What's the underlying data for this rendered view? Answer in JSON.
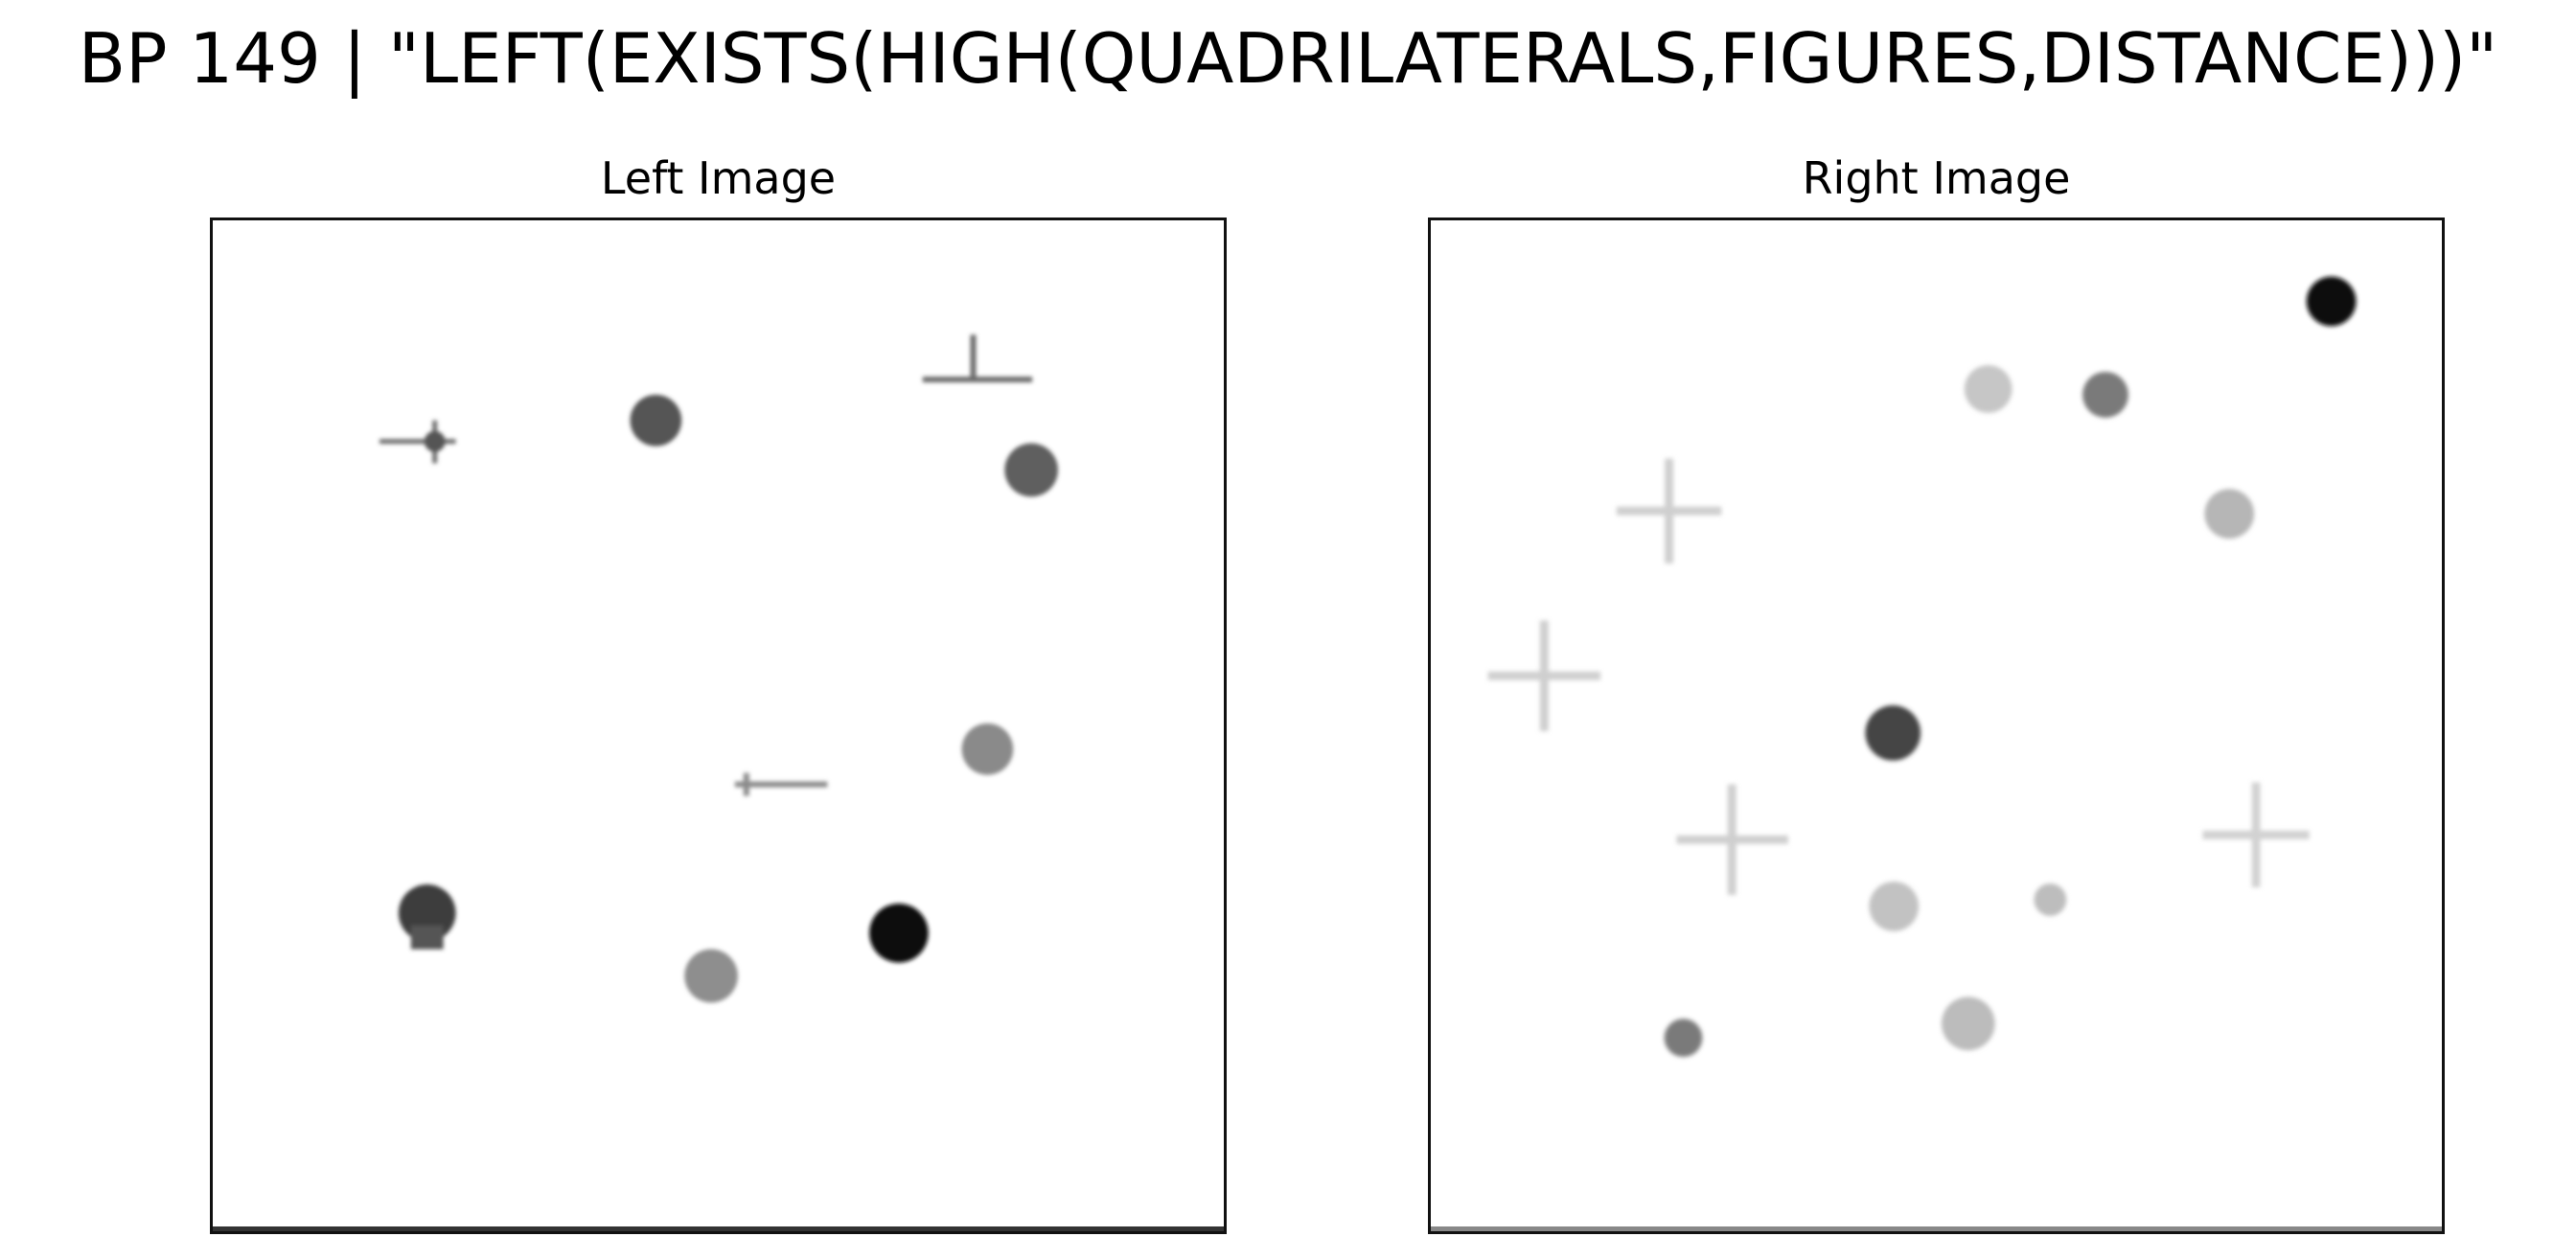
{
  "figure": {
    "title": "BP 149 | \"LEFT(EXISTS(HIGH(QUADRILATERALS,FIGURES,DISTANCE)))\""
  },
  "panels": {
    "left": {
      "title": "Left Image"
    },
    "right": {
      "title": "Right Image"
    }
  }
}
